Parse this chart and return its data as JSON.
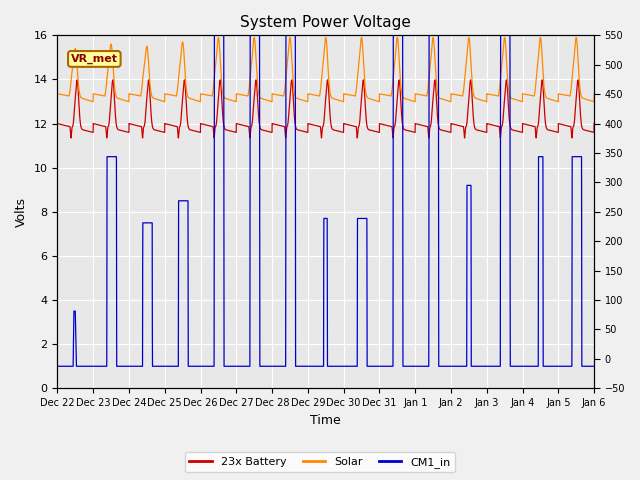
{
  "title": "System Power Voltage",
  "xlabel": "Time",
  "ylabel_left": "Volts",
  "ylim_left": [
    0,
    16
  ],
  "ylim_right": [
    -50,
    550
  ],
  "xlim_days": [
    0,
    15
  ],
  "background_color": "#e8e8e8",
  "grid_color": "#ffffff",
  "annotation_text": "VR_met",
  "annotation_box_color": "#ffff99",
  "annotation_box_edge": "#aa6600",
  "legend_labels": [
    "23x Battery",
    "Solar",
    "CM1_in"
  ],
  "legend_colors": [
    "#cc0000",
    "#ff8800",
    "#0000cc"
  ],
  "tick_labels": [
    "Dec 22",
    "Dec 23",
    "Dec 24",
    "Dec 25",
    "Dec 26",
    "Dec 27",
    "Dec 28",
    "Dec 29",
    "Dec 30",
    "Dec 31",
    "Jan 1",
    "Jan 2",
    "Jan 3",
    "Jan 4",
    "Jan 5",
    "Jan 6"
  ],
  "yticks_left": [
    0,
    2,
    4,
    6,
    8,
    10,
    12,
    14,
    16
  ],
  "yticks_right": [
    -50,
    0,
    50,
    100,
    150,
    200,
    250,
    300,
    350,
    400,
    450,
    500,
    550
  ],
  "figsize": [
    6.4,
    4.8
  ],
  "dpi": 100
}
